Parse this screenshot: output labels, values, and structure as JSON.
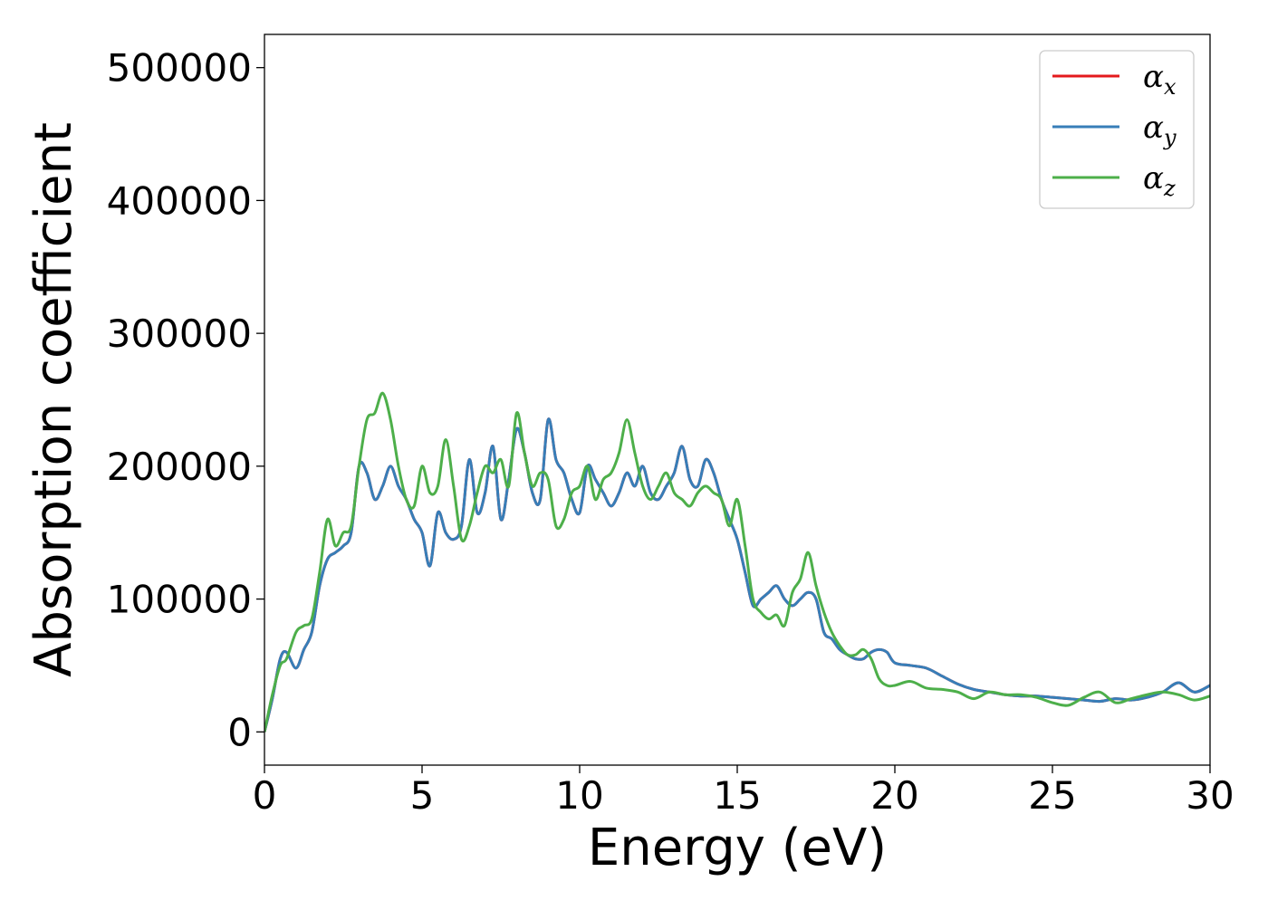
{
  "chart_data": {
    "type": "line",
    "xlabel": "Energy (eV)",
    "ylabel": "Absorption coefficient",
    "xlim": [
      0,
      30
    ],
    "ylim": [
      -25000,
      525000
    ],
    "xticks": [
      "0",
      "5",
      "10",
      "15",
      "20",
      "25",
      "30"
    ],
    "yticks": [
      "0",
      "100000",
      "200000",
      "300000",
      "400000",
      "500000"
    ],
    "grid": false,
    "legend_position": "top-right",
    "x": [
      0.0,
      0.25,
      0.5,
      0.7,
      1.0,
      1.25,
      1.5,
      1.75,
      2.0,
      2.25,
      2.5,
      2.75,
      3.0,
      3.25,
      3.5,
      3.75,
      4.0,
      4.25,
      4.5,
      4.75,
      5.0,
      5.25,
      5.5,
      5.75,
      6.0,
      6.25,
      6.5,
      6.75,
      7.0,
      7.25,
      7.5,
      7.75,
      8.0,
      8.25,
      8.5,
      8.75,
      9.0,
      9.25,
      9.5,
      9.75,
      10.0,
      10.25,
      10.5,
      10.75,
      11.0,
      11.25,
      11.5,
      11.75,
      12.0,
      12.25,
      12.5,
      12.75,
      13.0,
      13.25,
      13.5,
      13.75,
      14.0,
      14.25,
      14.5,
      14.75,
      15.0,
      15.25,
      15.5,
      15.75,
      16.0,
      16.25,
      16.5,
      16.75,
      17.0,
      17.25,
      17.5,
      17.75,
      18.0,
      18.25,
      18.5,
      18.75,
      19.0,
      19.25,
      19.5,
      19.75,
      20.0,
      20.5,
      21.0,
      21.5,
      22.0,
      22.5,
      23.0,
      23.5,
      24.0,
      24.5,
      25.0,
      25.5,
      26.0,
      26.5,
      27.0,
      27.5,
      28.0,
      28.5,
      29.0,
      29.5,
      30.0
    ],
    "series": [
      {
        "name": "α",
        "subscript": "x",
        "color": "#e41a1c",
        "values": [
          0,
          25000,
          55000,
          60000,
          48000,
          62000,
          75000,
          110000,
          130000,
          135000,
          140000,
          150000,
          200000,
          195000,
          175000,
          185000,
          200000,
          185000,
          175000,
          160000,
          150000,
          125000,
          165000,
          150000,
          145000,
          155000,
          205000,
          165000,
          180000,
          215000,
          160000,
          190000,
          228000,
          210000,
          180000,
          175000,
          235000,
          205000,
          195000,
          175000,
          165000,
          200000,
          190000,
          180000,
          170000,
          180000,
          195000,
          185000,
          200000,
          180000,
          175000,
          185000,
          195000,
          215000,
          190000,
          185000,
          205000,
          195000,
          175000,
          160000,
          145000,
          120000,
          95000,
          100000,
          105000,
          110000,
          100000,
          95000,
          100000,
          105000,
          100000,
          75000,
          70000,
          62000,
          58000,
          55000,
          55000,
          60000,
          62000,
          60000,
          52000,
          50000,
          48000,
          42000,
          36000,
          32000,
          30000,
          28000,
          27000,
          27000,
          26000,
          25000,
          24000,
          23000,
          25000,
          24000,
          26000,
          30000,
          37000,
          30000,
          35000
        ]
      },
      {
        "name": "α",
        "subscript": "y",
        "color": "#377eb8",
        "values": [
          0,
          25000,
          55000,
          60000,
          48000,
          62000,
          75000,
          110000,
          130000,
          135000,
          140000,
          150000,
          200000,
          195000,
          175000,
          185000,
          200000,
          185000,
          175000,
          160000,
          150000,
          125000,
          165000,
          150000,
          145000,
          155000,
          205000,
          165000,
          180000,
          215000,
          160000,
          190000,
          228000,
          210000,
          180000,
          175000,
          235000,
          205000,
          195000,
          175000,
          165000,
          200000,
          190000,
          180000,
          170000,
          180000,
          195000,
          185000,
          200000,
          180000,
          175000,
          185000,
          195000,
          215000,
          190000,
          185000,
          205000,
          195000,
          175000,
          160000,
          145000,
          120000,
          95000,
          100000,
          105000,
          110000,
          100000,
          95000,
          100000,
          105000,
          100000,
          75000,
          70000,
          62000,
          58000,
          55000,
          55000,
          60000,
          62000,
          60000,
          52000,
          50000,
          48000,
          42000,
          36000,
          32000,
          30000,
          28000,
          27000,
          27000,
          26000,
          25000,
          24000,
          23000,
          25000,
          24000,
          26000,
          30000,
          37000,
          30000,
          35000
        ]
      },
      {
        "name": "α",
        "subscript": "z",
        "color": "#4daf4a",
        "values": [
          0,
          28000,
          50000,
          55000,
          75000,
          80000,
          85000,
          120000,
          160000,
          140000,
          150000,
          155000,
          200000,
          235000,
          240000,
          255000,
          235000,
          200000,
          175000,
          170000,
          200000,
          180000,
          185000,
          220000,
          185000,
          145000,
          155000,
          180000,
          200000,
          195000,
          205000,
          185000,
          240000,
          210000,
          185000,
          195000,
          190000,
          155000,
          160000,
          180000,
          185000,
          200000,
          175000,
          190000,
          195000,
          210000,
          235000,
          210000,
          185000,
          175000,
          185000,
          195000,
          180000,
          175000,
          170000,
          180000,
          185000,
          180000,
          175000,
          155000,
          175000,
          140000,
          100000,
          90000,
          85000,
          88000,
          80000,
          105000,
          115000,
          135000,
          110000,
          90000,
          75000,
          65000,
          58000,
          58000,
          62000,
          55000,
          40000,
          35000,
          35000,
          38000,
          33000,
          32000,
          30000,
          25000,
          30000,
          28000,
          28000,
          26000,
          22000,
          20000,
          26000,
          30000,
          22000,
          25000,
          28000,
          30000,
          28000,
          24000,
          27000
        ]
      }
    ]
  }
}
